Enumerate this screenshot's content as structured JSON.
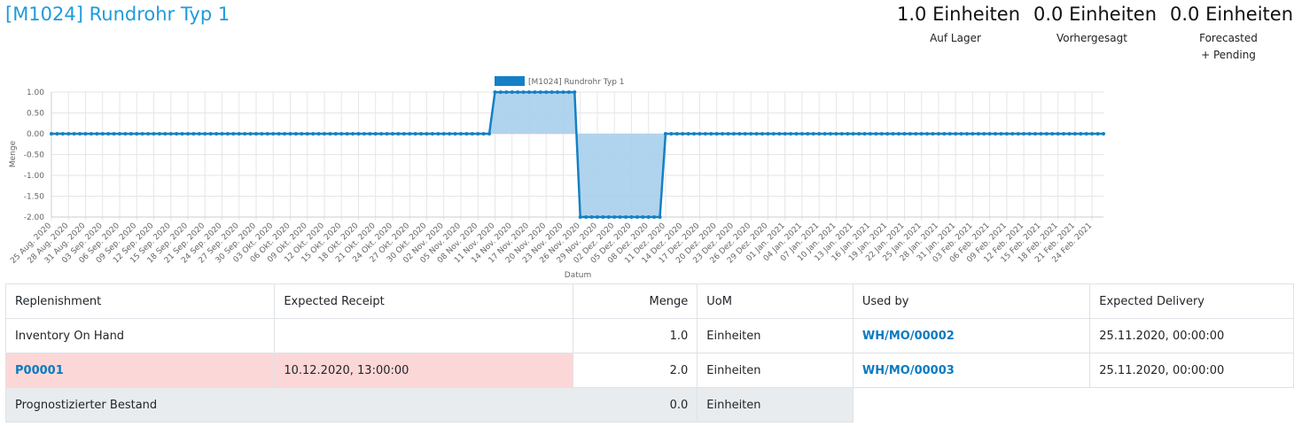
{
  "header": {
    "title": "[M1024] Rundrohr Typ 1"
  },
  "stats": [
    {
      "value": "1.0 Einheiten",
      "label": "Auf Lager",
      "label2": ""
    },
    {
      "value": "0.0 Einheiten",
      "label": "Vorhergesagt",
      "label2": ""
    },
    {
      "value": "0.0 Einheiten",
      "label": "Forecasted",
      "label2": "+ Pending"
    }
  ],
  "chart_data": {
    "type": "area",
    "legend": {
      "label": "[M1024] Rundrohr Typ 1",
      "position": "top",
      "color": "#1580c5"
    },
    "xlabel": "Datum",
    "ylabel": "Menge",
    "ylim": [
      -2.0,
      1.0
    ],
    "yticks": [
      "1.00",
      "0.50",
      "0.00",
      "-0.50",
      "-1.00",
      "-1.50",
      "-2.00"
    ],
    "grid": true,
    "x_start": "2020-08-25",
    "x_end": "2021-02-26",
    "x_ticks": [
      "25 Aug. 2020",
      "28 Aug. 2020",
      "31 Aug. 2020",
      "03 Sep. 2020",
      "06 Sep. 2020",
      "09 Sep. 2020",
      "12 Sep. 2020",
      "15 Sep. 2020",
      "18 Sep. 2020",
      "21 Sep. 2020",
      "24 Sep. 2020",
      "27 Sep. 2020",
      "30 Sep. 2020",
      "03 Okt. 2020",
      "06 Okt. 2020",
      "09 Okt. 2020",
      "12 Okt. 2020",
      "15 Okt. 2020",
      "18 Okt. 2020",
      "21 Okt. 2020",
      "24 Okt. 2020",
      "27 Okt. 2020",
      "30 Okt. 2020",
      "02 Nov. 2020",
      "05 Nov. 2020",
      "08 Nov. 2020",
      "11 Nov. 2020",
      "14 Nov. 2020",
      "17 Nov. 2020",
      "20 Nov. 2020",
      "23 Nov. 2020",
      "26 Nov. 2020",
      "29 Nov. 2020",
      "02 Dez. 2020",
      "05 Dez. 2020",
      "08 Dez. 2020",
      "11 Dez. 2020",
      "14 Dez. 2020",
      "17 Dez. 2020",
      "20 Dez. 2020",
      "23 Dez. 2020",
      "26 Dez. 2020",
      "29 Dez. 2020",
      "01 Jan. 2021",
      "04 Jan. 2021",
      "07 Jan. 2021",
      "10 Jan. 2021",
      "13 Jan. 2021",
      "16 Jan. 2021",
      "19 Jan. 2021",
      "22 Jan. 2021",
      "25 Jan. 2021",
      "28 Jan. 2021",
      "31 Jan. 2021",
      "03 Feb. 2021",
      "06 Feb. 2021",
      "09 Feb. 2021",
      "12 Feb. 2021",
      "15 Feb. 2021",
      "18 Feb. 2021",
      "21 Feb. 2021",
      "24 Feb. 2021"
    ],
    "series": [
      {
        "values_by_period": [
          {
            "from": "2020-08-25",
            "to": "2020-11-10",
            "value": 0.0
          },
          {
            "from": "2020-11-11",
            "to": "2020-11-25",
            "value": 1.0
          },
          {
            "from": "2020-11-26",
            "to": "2020-12-10",
            "value": -2.0
          },
          {
            "from": "2020-12-11",
            "to": "2021-02-26",
            "value": 0.0
          }
        ]
      }
    ],
    "colors": {
      "line": "#1580c5",
      "fill": "#a8cfec",
      "grid": "#e6e6e6",
      "text": "#666666"
    }
  },
  "table": {
    "columns": [
      "Replenishment",
      "Expected Receipt",
      "Menge",
      "UoM",
      "Used by",
      "Expected Delivery"
    ],
    "rows": [
      {
        "replenishment": "Inventory On Hand",
        "receipt": "",
        "qty": "1.0",
        "uom": "Einheiten",
        "used_by": "WH/MO/00002",
        "delivery": "25.11.2020, 00:00:00"
      },
      {
        "replenishment": "P00001",
        "receipt": "10.12.2020, 13:00:00",
        "qty": "2.0",
        "uom": "Einheiten",
        "used_by": "WH/MO/00003",
        "delivery": "25.11.2020, 00:00:00"
      }
    ],
    "total": {
      "label": "Prognostizierter Bestand",
      "qty": "0.0",
      "uom": "Einheiten"
    },
    "colors": {
      "late_row": "#fcd7d7",
      "total_row": "#e9ecef",
      "link": "#0c7bc0"
    }
  }
}
